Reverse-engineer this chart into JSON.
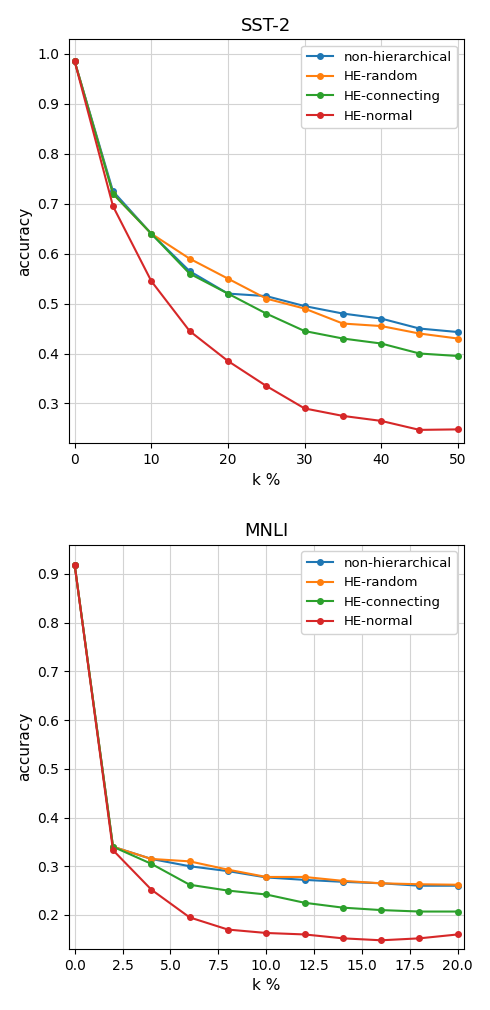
{
  "sst2": {
    "title": "SST-2",
    "xlabel": "k %",
    "ylabel": "accuracy",
    "x": [
      0,
      5,
      10,
      15,
      20,
      25,
      30,
      35,
      40,
      45,
      50
    ],
    "non_hierarchical": [
      0.985,
      0.725,
      0.64,
      0.565,
      0.52,
      0.515,
      0.495,
      0.48,
      0.47,
      0.45,
      0.443
    ],
    "he_random": [
      0.985,
      0.72,
      0.64,
      0.59,
      0.55,
      0.51,
      0.49,
      0.46,
      0.455,
      0.44,
      0.43
    ],
    "he_connecting": [
      0.985,
      0.72,
      0.64,
      0.56,
      0.52,
      0.48,
      0.445,
      0.43,
      0.42,
      0.4,
      0.395
    ],
    "he_normal": [
      0.985,
      0.695,
      0.545,
      0.445,
      0.385,
      0.335,
      0.29,
      0.275,
      0.265,
      0.247,
      0.248
    ],
    "ylim": [
      0.22,
      1.03
    ],
    "yticks": [
      0.3,
      0.4,
      0.5,
      0.6,
      0.7,
      0.8,
      0.9,
      1.0
    ],
    "xticks": [
      0,
      10,
      20,
      30,
      40,
      50
    ]
  },
  "mnli": {
    "title": "MNLI",
    "xlabel": "k %",
    "ylabel": "accuracy",
    "x": [
      0.0,
      2.0,
      4.0,
      6.0,
      8.0,
      10.0,
      12.0,
      14.0,
      16.0,
      18.0,
      20.0
    ],
    "non_hierarchical": [
      0.918,
      0.34,
      0.315,
      0.3,
      0.29,
      0.277,
      0.272,
      0.268,
      0.265,
      0.26,
      0.26
    ],
    "he_random": [
      0.918,
      0.34,
      0.315,
      0.31,
      0.293,
      0.278,
      0.278,
      0.27,
      0.265,
      0.263,
      0.262
    ],
    "he_connecting": [
      0.918,
      0.34,
      0.305,
      0.262,
      0.25,
      0.242,
      0.225,
      0.215,
      0.21,
      0.207,
      0.207
    ],
    "he_normal": [
      0.918,
      0.333,
      0.252,
      0.195,
      0.17,
      0.163,
      0.16,
      0.152,
      0.148,
      0.152,
      0.16
    ],
    "ylim": [
      0.13,
      0.96
    ],
    "yticks": [
      0.2,
      0.3,
      0.4,
      0.5,
      0.6,
      0.7,
      0.8,
      0.9
    ],
    "xticks": [
      0.0,
      2.5,
      5.0,
      7.5,
      10.0,
      12.5,
      15.0,
      17.5,
      20.0
    ]
  },
  "colors": {
    "non_hierarchical": "#1f77b4",
    "he_random": "#ff7f0e",
    "he_connecting": "#2ca02c",
    "he_normal": "#d62728"
  },
  "labels": {
    "non_hierarchical": "non-hierarchical",
    "he_random": "HE-random",
    "he_connecting": "HE-connecting",
    "he_normal": "HE-normal"
  },
  "figsize": [
    4.9,
    10.1
  ],
  "dpi": 100
}
